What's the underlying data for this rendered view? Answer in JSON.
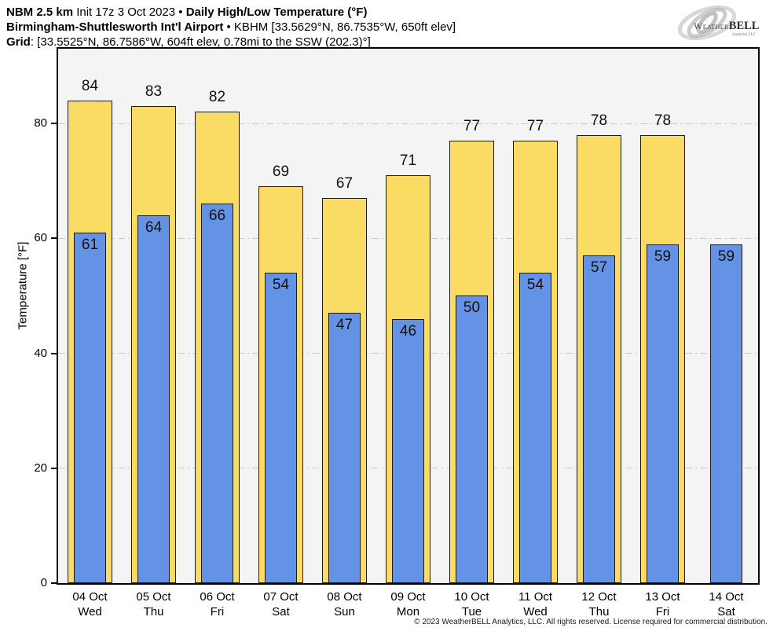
{
  "header": {
    "line1_model": "NBM 2.5 km",
    "line1_init": " Init 17z 3 Oct 2023 • ",
    "line1_product": "Daily High/Low Temperature (°F)",
    "line2_station": "Birmingham-Shuttlesworth Int'l Airport",
    "line2_rest": " • KBHM [33.5629°N, 86.7535°W, 650ft elev]",
    "line3_label": "Grid",
    "line3_rest": ": [33.5525°N, 86.7586°W, 604ft elev, 0.78mi to the SSW (202.3)°]"
  },
  "logo": {
    "brand_a": "Weather",
    "brand_b": "BELL",
    "sub": "Analytics LLC"
  },
  "footer": {
    "copyright": "© 2023 WeatherBELL Analytics, LLC. All rights reserved. License required for commercial distribution."
  },
  "chart_data": {
    "type": "bar",
    "title": "NBM 2.5 km Init 17z 3 Oct 2023 • Daily High/Low Temperature (°F)",
    "subtitle": "Birmingham-Shuttlesworth Int'l Airport • KBHM",
    "xlabel": "",
    "ylabel": "Temperature [°F]",
    "ylim": [
      0,
      93
    ],
    "yticks": [
      0,
      20,
      40,
      60,
      80
    ],
    "grid": true,
    "legend_position": "none",
    "plot_bg": "#f4f4f4",
    "categories": [
      "04 Oct",
      "05 Oct",
      "06 Oct",
      "07 Oct",
      "08 Oct",
      "09 Oct",
      "10 Oct",
      "11 Oct",
      "12 Oct",
      "13 Oct",
      "14 Oct"
    ],
    "weekdays": [
      "Wed",
      "Thu",
      "Fri",
      "Sat",
      "Sun",
      "Mon",
      "Tue",
      "Wed",
      "Thu",
      "Fri",
      "Sat"
    ],
    "series": [
      {
        "name": "Daily High",
        "color": "#FADC64",
        "values": [
          84,
          83,
          82,
          69,
          67,
          71,
          77,
          77,
          78,
          78,
          null
        ]
      },
      {
        "name": "Daily Low",
        "color": "#6492E4",
        "values": [
          61,
          64,
          66,
          54,
          47,
          46,
          50,
          54,
          57,
          59,
          59
        ]
      }
    ]
  }
}
